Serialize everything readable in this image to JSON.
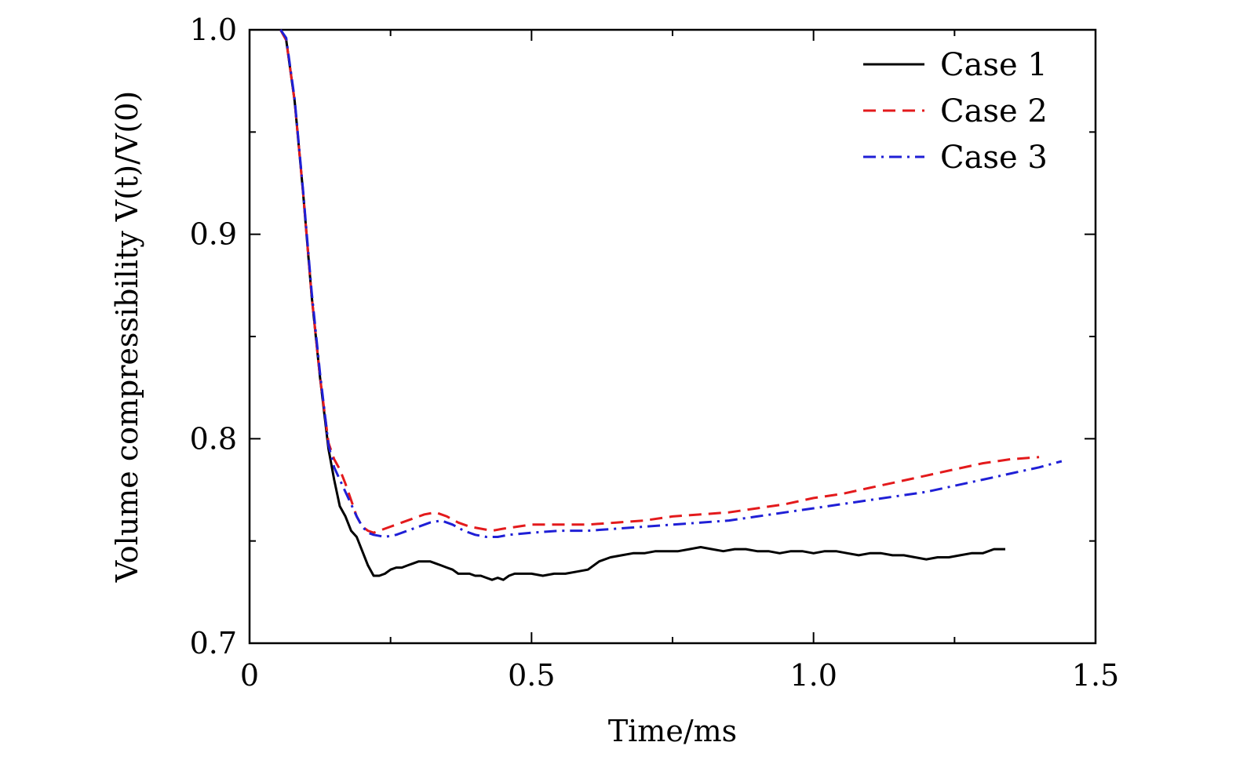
{
  "chart_data": {
    "type": "line",
    "title": "",
    "xlabel": "Time/ms",
    "ylabel": "Volume compressibility V(t)/V(0)",
    "xlim": [
      0,
      1.5
    ],
    "ylim": [
      0.7,
      1.0
    ],
    "xticks": [
      0,
      0.5,
      1.0,
      1.5
    ],
    "xtick_labels": [
      "0",
      "0.5",
      "1.0",
      "1.5"
    ],
    "yticks": [
      0.7,
      0.8,
      0.9,
      1.0
    ],
    "ytick_labels": [
      "0.7",
      "0.8",
      "0.9",
      "1.0"
    ],
    "legend_position": "top-right",
    "grid": false,
    "series": [
      {
        "name": "Case 1",
        "color": "#000000",
        "dash": "solid",
        "x": [
          0.055,
          0.065,
          0.08,
          0.095,
          0.11,
          0.125,
          0.14,
          0.15,
          0.16,
          0.17,
          0.18,
          0.19,
          0.2,
          0.21,
          0.22,
          0.23,
          0.24,
          0.25,
          0.26,
          0.27,
          0.28,
          0.29,
          0.3,
          0.31,
          0.32,
          0.33,
          0.34,
          0.35,
          0.36,
          0.37,
          0.38,
          0.39,
          0.4,
          0.41,
          0.42,
          0.43,
          0.44,
          0.45,
          0.46,
          0.47,
          0.48,
          0.5,
          0.52,
          0.54,
          0.56,
          0.58,
          0.6,
          0.62,
          0.64,
          0.66,
          0.68,
          0.7,
          0.72,
          0.74,
          0.76,
          0.78,
          0.8,
          0.82,
          0.84,
          0.86,
          0.88,
          0.9,
          0.92,
          0.94,
          0.96,
          0.98,
          1.0,
          1.02,
          1.04,
          1.06,
          1.08,
          1.1,
          1.12,
          1.14,
          1.16,
          1.18,
          1.2,
          1.22,
          1.24,
          1.26,
          1.28,
          1.3,
          1.32,
          1.34
        ],
        "values": [
          1.0,
          0.995,
          0.965,
          0.92,
          0.87,
          0.83,
          0.795,
          0.78,
          0.767,
          0.762,
          0.755,
          0.752,
          0.745,
          0.738,
          0.733,
          0.733,
          0.734,
          0.736,
          0.737,
          0.737,
          0.738,
          0.739,
          0.74,
          0.74,
          0.74,
          0.739,
          0.738,
          0.737,
          0.736,
          0.734,
          0.734,
          0.734,
          0.733,
          0.733,
          0.732,
          0.731,
          0.732,
          0.731,
          0.733,
          0.734,
          0.734,
          0.734,
          0.733,
          0.734,
          0.734,
          0.735,
          0.736,
          0.74,
          0.742,
          0.743,
          0.744,
          0.744,
          0.745,
          0.745,
          0.745,
          0.746,
          0.747,
          0.746,
          0.745,
          0.746,
          0.746,
          0.745,
          0.745,
          0.744,
          0.745,
          0.745,
          0.744,
          0.745,
          0.745,
          0.744,
          0.743,
          0.744,
          0.744,
          0.743,
          0.743,
          0.742,
          0.741,
          0.742,
          0.742,
          0.743,
          0.744,
          0.744,
          0.746,
          0.746
        ]
      },
      {
        "name": "Case 2",
        "color": "#e31a1c",
        "dash": "dashed",
        "x": [
          0.055,
          0.065,
          0.08,
          0.095,
          0.11,
          0.125,
          0.14,
          0.15,
          0.16,
          0.17,
          0.18,
          0.19,
          0.2,
          0.21,
          0.22,
          0.23,
          0.25,
          0.27,
          0.29,
          0.31,
          0.33,
          0.35,
          0.37,
          0.39,
          0.41,
          0.43,
          0.45,
          0.5,
          0.55,
          0.6,
          0.65,
          0.7,
          0.75,
          0.8,
          0.85,
          0.9,
          0.95,
          1.0,
          1.05,
          1.1,
          1.15,
          1.2,
          1.25,
          1.3,
          1.35,
          1.4
        ],
        "values": [
          1.0,
          0.995,
          0.965,
          0.92,
          0.87,
          0.83,
          0.798,
          0.79,
          0.785,
          0.778,
          0.77,
          0.762,
          0.757,
          0.755,
          0.754,
          0.755,
          0.757,
          0.759,
          0.761,
          0.763,
          0.764,
          0.762,
          0.759,
          0.757,
          0.756,
          0.755,
          0.756,
          0.758,
          0.758,
          0.758,
          0.759,
          0.76,
          0.762,
          0.763,
          0.764,
          0.766,
          0.768,
          0.771,
          0.773,
          0.776,
          0.779,
          0.782,
          0.785,
          0.788,
          0.79,
          0.791
        ]
      },
      {
        "name": "Case 3",
        "color": "#1f1fd6",
        "dash": "dashdot",
        "x": [
          0.055,
          0.065,
          0.08,
          0.095,
          0.11,
          0.125,
          0.14,
          0.15,
          0.16,
          0.17,
          0.18,
          0.19,
          0.2,
          0.21,
          0.22,
          0.24,
          0.26,
          0.28,
          0.3,
          0.32,
          0.34,
          0.36,
          0.38,
          0.4,
          0.42,
          0.44,
          0.46,
          0.5,
          0.55,
          0.6,
          0.65,
          0.7,
          0.75,
          0.8,
          0.85,
          0.9,
          0.95,
          1.0,
          1.05,
          1.1,
          1.15,
          1.2,
          1.25,
          1.3,
          1.35,
          1.4,
          1.44
        ],
        "values": [
          1.0,
          0.996,
          0.966,
          0.921,
          0.872,
          0.832,
          0.797,
          0.786,
          0.78,
          0.774,
          0.768,
          0.762,
          0.757,
          0.754,
          0.753,
          0.752,
          0.753,
          0.755,
          0.757,
          0.759,
          0.76,
          0.758,
          0.755,
          0.753,
          0.752,
          0.752,
          0.753,
          0.754,
          0.755,
          0.755,
          0.756,
          0.757,
          0.758,
          0.759,
          0.76,
          0.762,
          0.764,
          0.766,
          0.768,
          0.77,
          0.772,
          0.774,
          0.777,
          0.78,
          0.783,
          0.786,
          0.789
        ]
      }
    ]
  }
}
